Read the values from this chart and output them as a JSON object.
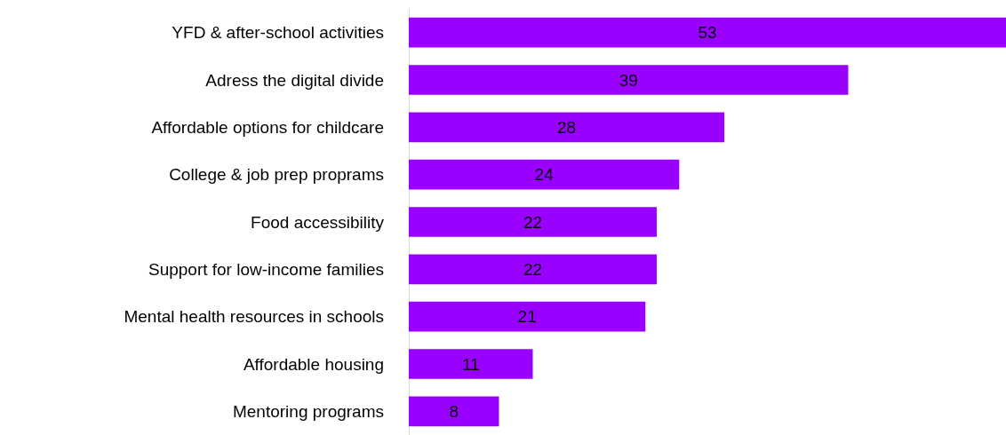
{
  "chart_data": {
    "type": "bar",
    "orientation": "horizontal",
    "categories": [
      "YFD & after-school activities",
      "Adress the digital divide",
      "Affordable options for childcare",
      "College & job prep proprams",
      "Food accessibility",
      "Support for low-income families",
      "Mental health resources in schools",
      "Affordable housing",
      "Mentoring programs"
    ],
    "values": [
      53,
      39,
      28,
      24,
      22,
      22,
      21,
      11,
      8
    ],
    "color": "#9900ff",
    "data_labels": true
  }
}
